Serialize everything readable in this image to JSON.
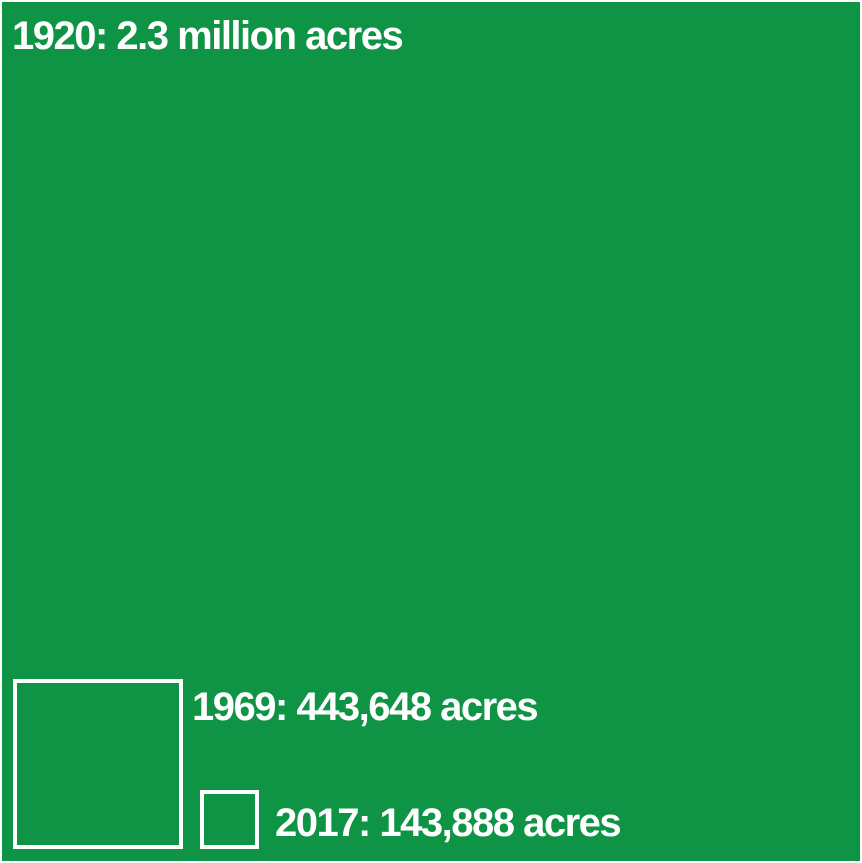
{
  "chart_data": {
    "type": "area",
    "colors": {
      "fill": "#0e9444",
      "outline": "#ffffff"
    },
    "items": [
      {
        "year": "1920",
        "value": 2300000,
        "label": "1920: 2.3 million acres"
      },
      {
        "year": "1969",
        "value": 443648,
        "label": "1969: 443,648 acres"
      },
      {
        "year": "2017",
        "value": 143888,
        "label": "2017: 143,888 acres"
      }
    ]
  }
}
